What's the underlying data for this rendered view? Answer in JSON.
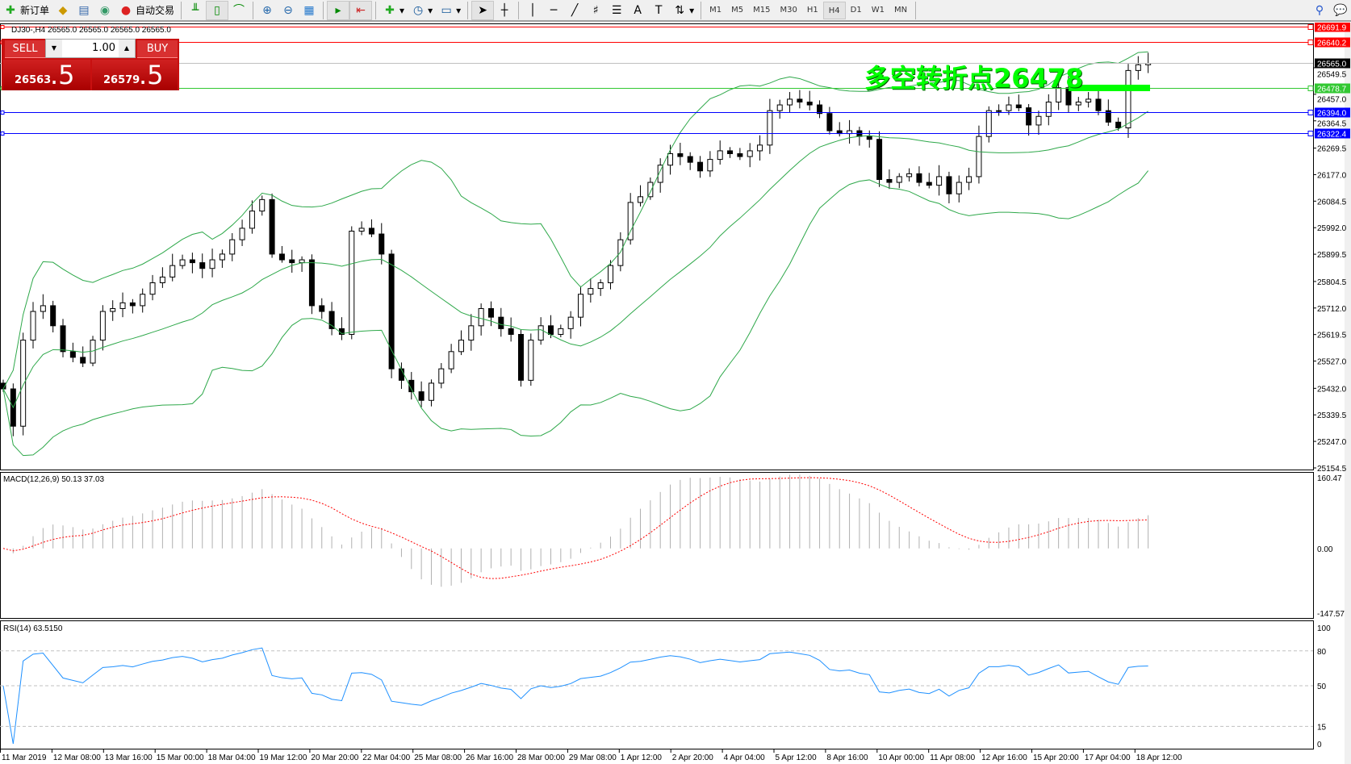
{
  "toolbar": {
    "new_order": "新订单",
    "auto_trading": "自动交易",
    "icons": [
      "new-order-icon",
      "market-watch-icon",
      "navigator-icon",
      "signals-icon",
      "auto-trading-icon",
      "bar-chart-icon",
      "candlestick-icon",
      "line-chart-icon",
      "zoom-in-icon",
      "zoom-out-icon",
      "tile-windows-icon",
      "autoscroll-icon",
      "chart-shift-icon",
      "indicators-icon",
      "periods-icon",
      "templates-icon",
      "cursor-icon",
      "crosshair-icon",
      "vertical-line-icon",
      "horizontal-line-icon",
      "trendline-icon",
      "fibonacci-icon",
      "channel-icon",
      "text-icon",
      "text-label-icon",
      "arrows-icon",
      "search-icon",
      "chat-icon"
    ],
    "timeframes": [
      "M1",
      "M5",
      "M15",
      "M30",
      "H1",
      "H4",
      "D1",
      "W1",
      "MN"
    ],
    "active_timeframe": "H4"
  },
  "symbol_info": "DJ30-,H4  26565.0 26565.0 26565.0 26565.0",
  "trade_panel": {
    "sell_label": "SELL",
    "buy_label": "BUY",
    "lot": "1.00",
    "sell_big": "26563",
    "sell_small": ".5",
    "buy_big": "26579",
    "buy_small": ".5"
  },
  "annotation": "多空转折点26478",
  "colors": {
    "bull": "#ffffff",
    "bear": "#000000",
    "bands": "#2ea84a",
    "macd_signal": "#ff0000",
    "rsi": "#1e90ff",
    "annotation": "#00ff00"
  },
  "chart_data": [
    {
      "type": "candlestick",
      "symbol": "DJ30-",
      "timeframe": "H4",
      "closes": [
        25430,
        25300,
        25600,
        25700,
        25720,
        25650,
        25560,
        25540,
        25520,
        25600,
        25700,
        25710,
        25730,
        25720,
        25760,
        25800,
        25820,
        25860,
        25880,
        25870,
        25850,
        25880,
        25900,
        25950,
        25990,
        26050,
        26090,
        25900,
        25880,
        25870,
        25880,
        25720,
        25700,
        25640,
        25620,
        25980,
        25990,
        25970,
        25900,
        25500,
        25460,
        25420,
        25390,
        25450,
        25500,
        25560,
        25600,
        25650,
        25710,
        25680,
        25640,
        25620,
        25460,
        25600,
        25650,
        25620,
        25640,
        25680,
        25760,
        25780,
        25800,
        25860,
        25950,
        26080,
        26100,
        26150,
        26210,
        26250,
        26240,
        26220,
        26190,
        26230,
        26260,
        26250,
        26240,
        26260,
        26280,
        26400,
        26420,
        26440,
        26430,
        26420,
        26390,
        26330,
        26320,
        26330,
        26310,
        26300,
        26160,
        26150,
        26170,
        26180,
        26150,
        26140,
        26170,
        26110,
        26150,
        26170,
        26310,
        26400,
        26400,
        26420,
        26410,
        26350,
        26380,
        26430,
        26480,
        26420,
        26430,
        26440,
        26400,
        26360,
        26340,
        26540,
        26560,
        26565
      ],
      "ylim": [
        25154.5,
        26700
      ],
      "price_ticks": [
        26549.5,
        26457.0,
        26364.5,
        26269.5,
        26177.0,
        26084.5,
        25992.0,
        25899.5,
        25804.5,
        25712.0,
        25619.5,
        25527.0,
        25432.0,
        25339.5,
        25247.0,
        25154.5
      ],
      "hlines": [
        {
          "value": 26691.9,
          "label": "26691.9",
          "color": "#ff0000"
        },
        {
          "value": 26640.2,
          "label": "26640.2",
          "color": "#ff0000"
        },
        {
          "value": 26565.0,
          "label": "26565.0",
          "color": "#000000",
          "line": "#c0c0c0"
        },
        {
          "value": 26478.7,
          "label": "26478.7",
          "color": "#32c832"
        },
        {
          "value": 26394.0,
          "label": "26394.0",
          "color": "#0000ff"
        },
        {
          "value": 26322.4,
          "label": "26322.4",
          "color": "#0000ff"
        }
      ],
      "indicator": "Bollinger Bands(20,2)",
      "x_ticks": [
        "11 Mar 2019",
        "12 Mar 08:00",
        "13 Mar 16:00",
        "15 Mar 00:00",
        "18 Mar 04:00",
        "19 Mar 12:00",
        "20 Mar 20:00",
        "22 Mar 04:00",
        "25 Mar 08:00",
        "26 Mar 16:00",
        "28 Mar 00:00",
        "29 Mar 08:00",
        "1 Apr 12:00",
        "2 Apr 20:00",
        "4 Apr 04:00",
        "5 Apr 12:00",
        "8 Apr 16:00",
        "10 Apr 00:00",
        "11 Apr 08:00",
        "12 Apr 16:00",
        "15 Apr 20:00",
        "17 Apr 04:00",
        "18 Apr 12:00"
      ]
    },
    {
      "type": "bar",
      "title": "MACD(12,26,9) 50.13 37.03",
      "ylim": [
        -147.57,
        160.47
      ],
      "ticks": [
        "160.47",
        "0.00",
        "-147.57"
      ]
    },
    {
      "type": "line",
      "title": "RSI(14) 63.5150",
      "ylim": [
        0,
        100
      ],
      "ticks": [
        "100",
        "80",
        "50",
        "15",
        "0"
      ],
      "levels": [
        80,
        50,
        15
      ]
    }
  ]
}
